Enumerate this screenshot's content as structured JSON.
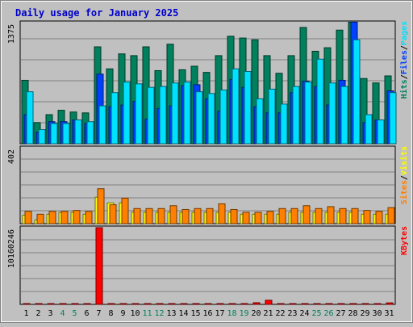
{
  "chart_data": {
    "type": "bar",
    "title": "Daily usage for January 2025",
    "categories": [
      "1",
      "2",
      "3",
      "4",
      "5",
      "6",
      "7",
      "8",
      "9",
      "10",
      "11",
      "12",
      "13",
      "14",
      "15",
      "16",
      "17",
      "18",
      "19",
      "20",
      "21",
      "22",
      "23",
      "24",
      "25",
      "26",
      "27",
      "28",
      "29",
      "30",
      "31"
    ],
    "weekend_days": [
      "4",
      "5",
      "11",
      "12",
      "18",
      "19",
      "25",
      "26"
    ],
    "colors": {
      "background": "#c0c0c0",
      "title": "#0000cc",
      "hits": "#00805c",
      "files": "#0040ff",
      "pages": "#00e0ff",
      "visits": "#ffff00",
      "sites": "#ff8000",
      "kbytes": "#ff0000",
      "weekday_label": "#000000",
      "weekend_label": "#00805c"
    },
    "panels": [
      {
        "id": "hits-files-pages",
        "axis_max_label": "1375",
        "ylim": [
          0,
          1375
        ],
        "series": [
          {
            "name": "Hits",
            "key": "hits",
            "values": [
              720,
              240,
              330,
              380,
              360,
              350,
              1100,
              850,
              1020,
              1000,
              1100,
              830,
              1130,
              840,
              880,
              810,
              1000,
              1220,
              1200,
              1180,
              1000,
              800,
              1000,
              1320,
              1050,
              1090,
              1290,
              1380,
              740,
              690,
              770
            ]
          },
          {
            "name": "Files",
            "key": "files",
            "values": [
              330,
              130,
              250,
              250,
              270,
              230,
              790,
              420,
              440,
              480,
              280,
              400,
              430,
              660,
              670,
              510,
              370,
              730,
              640,
              420,
              350,
              350,
              580,
              710,
              650,
              440,
              720,
              1380,
              240,
              270,
              600
            ]
          },
          {
            "name": "Pages",
            "key": "pages",
            "values": [
              590,
              160,
              230,
              230,
              270,
              250,
              430,
              580,
              700,
              680,
              640,
              650,
              690,
              700,
              590,
              570,
              610,
              850,
              820,
              510,
              620,
              450,
              650,
              700,
              960,
              690,
              650,
              1180,
              330,
              270,
              580
            ]
          }
        ],
        "legend": [
          {
            "text": "Hits",
            "key": "hits"
          },
          {
            "text": "/",
            "key": "weekday_label"
          },
          {
            "text": "Files",
            "key": "files"
          },
          {
            "text": "/",
            "key": "weekday_label"
          },
          {
            "text": "Pages",
            "key": "pages"
          }
        ]
      },
      {
        "id": "visits-sites",
        "axis_max_label": "402",
        "ylim": [
          0,
          402
        ],
        "series": [
          {
            "name": "Visits",
            "key": "visits",
            "values": [
              45,
              20,
              50,
              60,
              60,
              50,
              140,
              110,
              110,
              60,
              60,
              60,
              60,
              60,
              60,
              60,
              60,
              60,
              50,
              50,
              50,
              50,
              60,
              60,
              60,
              60,
              60,
              60,
              50,
              50,
              50
            ]
          },
          {
            "name": "Sites",
            "key": "sites",
            "values": [
              65,
              50,
              65,
              65,
              70,
              65,
              185,
              100,
              135,
              80,
              80,
              80,
              95,
              75,
              80,
              80,
              105,
              75,
              60,
              60,
              65,
              80,
              80,
              95,
              80,
              90,
              80,
              80,
              70,
              65,
              85
            ]
          }
        ],
        "legend": [
          {
            "text": "Sites",
            "key": "sites"
          },
          {
            "text": "/",
            "key": "weekday_label"
          },
          {
            "text": "Visits",
            "key": "visits"
          }
        ]
      },
      {
        "id": "kbytes",
        "axis_max_label": "10160246",
        "ylim": [
          0,
          10160246
        ],
        "series": [
          {
            "name": "KBytes",
            "key": "kbytes",
            "values": [
              60000,
              60000,
              60000,
              60000,
              60000,
              60000,
              10160246,
              60000,
              60000,
              60000,
              60000,
              60000,
              60000,
              60000,
              60000,
              60000,
              60000,
              60000,
              60000,
              220000,
              550000,
              60000,
              60000,
              60000,
              60000,
              60000,
              60000,
              60000,
              60000,
              60000,
              200000
            ]
          }
        ],
        "legend": [
          {
            "text": "KBytes",
            "key": "kbytes"
          }
        ]
      }
    ]
  }
}
